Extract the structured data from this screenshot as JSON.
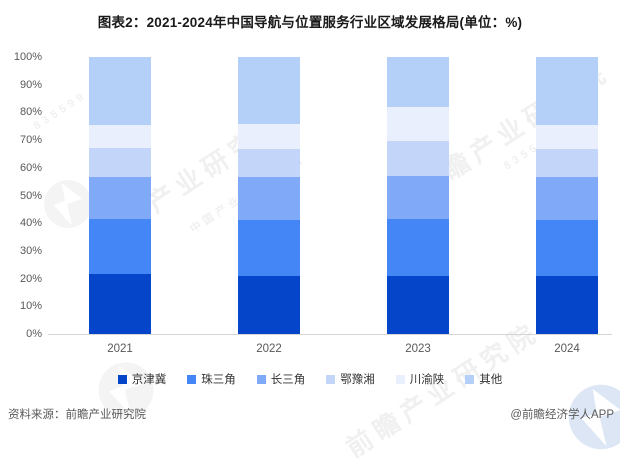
{
  "title": "图表2：2021-2024年中国导航与位置服务行业区域发展格局(单位：%)",
  "chart_data": {
    "type": "bar",
    "stacked": true,
    "unit": "%",
    "title": "图表2：2021-2024年中国导航与位置服务行业区域发展格局(单位：%)",
    "categories": [
      "2021",
      "2022",
      "2023",
      "2024"
    ],
    "series": [
      {
        "name": "京津冀",
        "color": "#0545ca",
        "values": [
          21.5,
          20.8,
          21.0,
          20.8
        ]
      },
      {
        "name": "珠三角",
        "color": "#4486f6",
        "values": [
          20.2,
          20.2,
          20.7,
          20.2
        ]
      },
      {
        "name": "长三角",
        "color": "#80a9f7",
        "values": [
          15.1,
          15.8,
          15.5,
          15.8
        ]
      },
      {
        "name": "鄂豫湘",
        "color": "#c3d5f9",
        "values": [
          10.5,
          10.1,
          12.5,
          10.1
        ]
      },
      {
        "name": "川渝陕",
        "color": "#e9effc",
        "values": [
          8.1,
          8.8,
          12.4,
          8.5
        ]
      },
      {
        "name": "其他",
        "color": "#b4d0f8",
        "values": [
          24.6,
          24.3,
          17.9,
          24.6
        ]
      }
    ],
    "xlabel": "",
    "ylabel": "",
    "ylim": [
      0,
      100
    ],
    "yticks": [
      "0%",
      "10%",
      "20%",
      "30%",
      "40%",
      "50%",
      "60%",
      "70%",
      "80%",
      "90%",
      "100%"
    ],
    "grid": false,
    "legend_position": "bottom"
  },
  "footer": {
    "source": "资料来源：前瞻产业研究院",
    "attribution": "@前瞻经济学人APP"
  },
  "watermark": {
    "brand": "前瞻产业研究院",
    "tagline": "中国产业咨询领导者",
    "code": "835599"
  }
}
